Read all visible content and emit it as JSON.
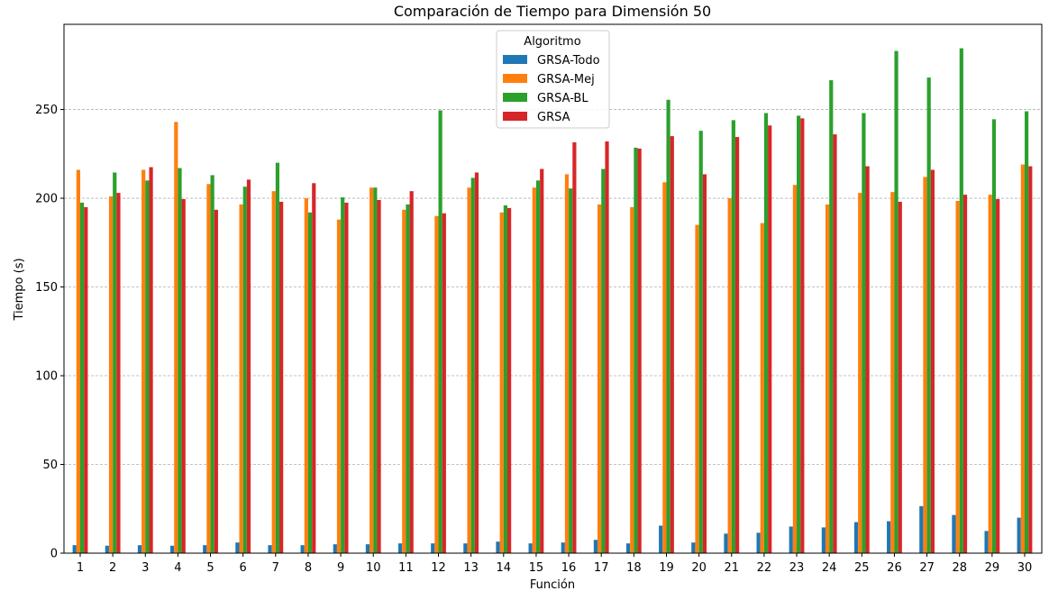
{
  "chart_data": {
    "type": "bar",
    "title": "Comparación de Tiempo para Dimensión 50",
    "xlabel": "Función",
    "ylabel": "Tiempo (s)",
    "ylim": [
      0,
      298
    ],
    "yticks": [
      0,
      50,
      100,
      150,
      200,
      250
    ],
    "grid": "y-dashed",
    "legend": {
      "title": "Algoritmo",
      "placement": "top-center"
    },
    "categories": [
      "1",
      "2",
      "3",
      "4",
      "5",
      "6",
      "7",
      "8",
      "9",
      "10",
      "11",
      "12",
      "13",
      "14",
      "15",
      "16",
      "17",
      "18",
      "19",
      "20",
      "21",
      "22",
      "23",
      "24",
      "25",
      "26",
      "27",
      "28",
      "29",
      "30"
    ],
    "series": [
      {
        "name": "GRSA-Todo",
        "color": "#1f77b4",
        "values": [
          4.5,
          4.2,
          4.5,
          4.2,
          4.5,
          6.0,
          4.5,
          4.5,
          5.0,
          5.0,
          5.5,
          5.5,
          5.5,
          6.5,
          5.5,
          6.0,
          7.5,
          5.5,
          15.5,
          6.0,
          11.0,
          11.5,
          15.0,
          14.5,
          17.5,
          18.0,
          26.5,
          21.5,
          12.5,
          20.0
        ]
      },
      {
        "name": "GRSA-Mej",
        "color": "#ff7f0e",
        "values": [
          216,
          201,
          216,
          243,
          208,
          196.5,
          204,
          200,
          188,
          206,
          193.5,
          190,
          206,
          192,
          206,
          213.5,
          196.5,
          195,
          209,
          185,
          200,
          186,
          207.5,
          196.5,
          203,
          203.5,
          212,
          198.5,
          202,
          219
        ]
      },
      {
        "name": "GRSA-BL",
        "color": "#2ca02c",
        "values": [
          197.5,
          214.5,
          210,
          217,
          213,
          206.5,
          220,
          192,
          200.5,
          206,
          196.5,
          249.5,
          211.5,
          196,
          210,
          205.5,
          216.5,
          228.5,
          255.5,
          238,
          244,
          248,
          246.5,
          266.5,
          248,
          283,
          268,
          284.5,
          244.5,
          249
        ]
      },
      {
        "name": "GRSA",
        "color": "#d62728",
        "values": [
          195,
          203,
          217.5,
          199.5,
          193.5,
          210.5,
          198,
          208.5,
          197.5,
          199,
          204,
          191.5,
          214.5,
          194.5,
          216.5,
          231.5,
          232,
          228,
          235,
          213.5,
          234.5,
          241,
          245,
          236,
          218,
          198,
          216,
          202,
          199.5,
          218
        ]
      }
    ]
  }
}
